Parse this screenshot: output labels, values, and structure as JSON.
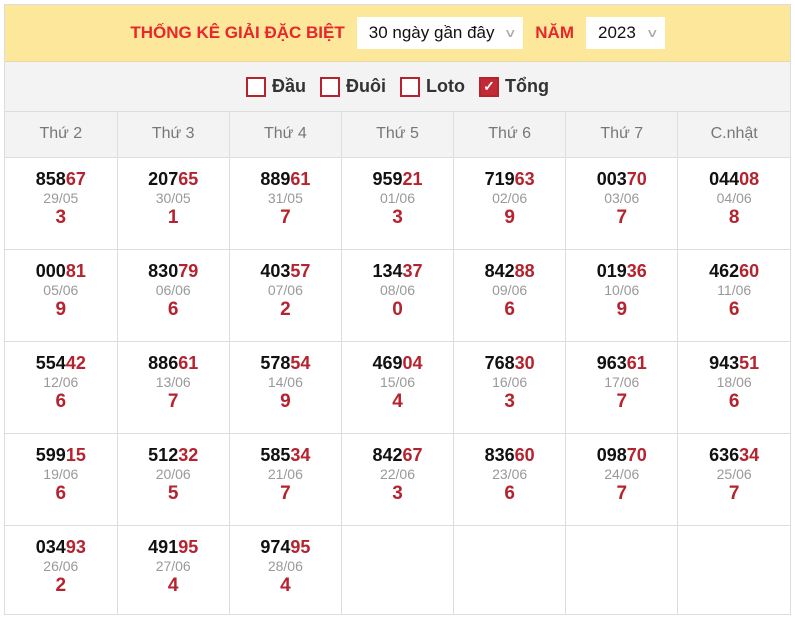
{
  "header": {
    "title": "THỐNG KÊ GIẢI ĐẶC BIỆT",
    "range_select": "30 ngày gần đây",
    "year_label": "NĂM",
    "year_select": "2023"
  },
  "filters": [
    {
      "label": "Đầu",
      "checked": false
    },
    {
      "label": "Đuôi",
      "checked": false
    },
    {
      "label": "Loto",
      "checked": false
    },
    {
      "label": "Tổng",
      "checked": true
    }
  ],
  "days": [
    "Thứ 2",
    "Thứ 3",
    "Thứ 4",
    "Thứ 5",
    "Thứ 6",
    "Thứ 7",
    "C.nhật"
  ],
  "rows": [
    [
      {
        "n": "85867",
        "d": "29/05",
        "s": "3"
      },
      {
        "n": "20765",
        "d": "30/05",
        "s": "1"
      },
      {
        "n": "88961",
        "d": "31/05",
        "s": "7"
      },
      {
        "n": "95921",
        "d": "01/06",
        "s": "3"
      },
      {
        "n": "71963",
        "d": "02/06",
        "s": "9"
      },
      {
        "n": "00370",
        "d": "03/06",
        "s": "7"
      },
      {
        "n": "04408",
        "d": "04/06",
        "s": "8"
      }
    ],
    [
      {
        "n": "00081",
        "d": "05/06",
        "s": "9"
      },
      {
        "n": "83079",
        "d": "06/06",
        "s": "6"
      },
      {
        "n": "40357",
        "d": "07/06",
        "s": "2"
      },
      {
        "n": "13437",
        "d": "08/06",
        "s": "0"
      },
      {
        "n": "84288",
        "d": "09/06",
        "s": "6"
      },
      {
        "n": "01936",
        "d": "10/06",
        "s": "9"
      },
      {
        "n": "46260",
        "d": "11/06",
        "s": "6"
      }
    ],
    [
      {
        "n": "55442",
        "d": "12/06",
        "s": "6"
      },
      {
        "n": "88661",
        "d": "13/06",
        "s": "7"
      },
      {
        "n": "57854",
        "d": "14/06",
        "s": "9"
      },
      {
        "n": "46904",
        "d": "15/06",
        "s": "4"
      },
      {
        "n": "76830",
        "d": "16/06",
        "s": "3"
      },
      {
        "n": "96361",
        "d": "17/06",
        "s": "7"
      },
      {
        "n": "94351",
        "d": "18/06",
        "s": "6"
      }
    ],
    [
      {
        "n": "59915",
        "d": "19/06",
        "s": "6"
      },
      {
        "n": "51232",
        "d": "20/06",
        "s": "5"
      },
      {
        "n": "58534",
        "d": "21/06",
        "s": "7"
      },
      {
        "n": "84267",
        "d": "22/06",
        "s": "3"
      },
      {
        "n": "83660",
        "d": "23/06",
        "s": "6"
      },
      {
        "n": "09870",
        "d": "24/06",
        "s": "7"
      },
      {
        "n": "63634",
        "d": "25/06",
        "s": "7"
      }
    ],
    [
      {
        "n": "03493",
        "d": "26/06",
        "s": "2"
      },
      {
        "n": "49195",
        "d": "27/06",
        "s": "4"
      },
      {
        "n": "97495",
        "d": "28/06",
        "s": "4"
      },
      null,
      null,
      null,
      null
    ]
  ]
}
